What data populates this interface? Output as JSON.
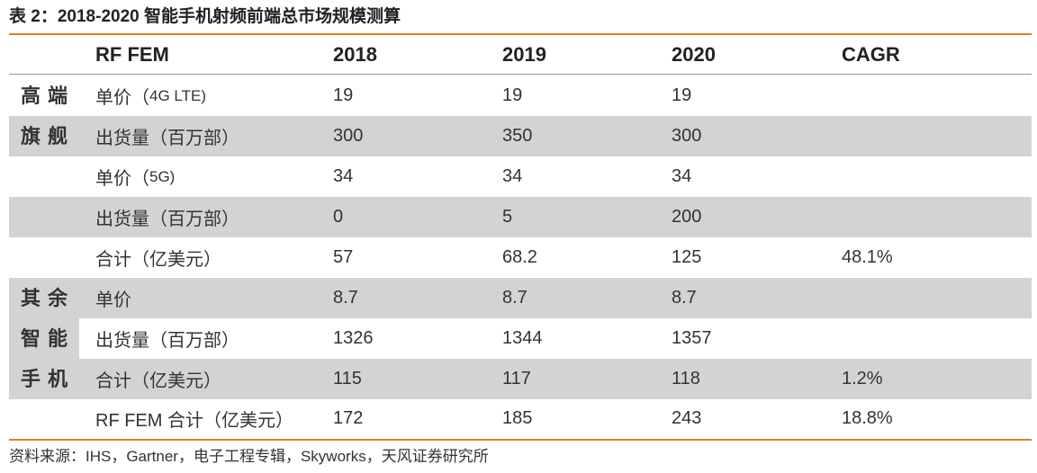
{
  "title": "表 2：2018-2020 智能手机射频前端总市场规模测算",
  "header": {
    "label": "RF FEM",
    "y2018": "2018",
    "y2019": "2019",
    "y2020": "2020",
    "cagr": "CAGR"
  },
  "groups": {
    "flagship": [
      "高端",
      "旗舰"
    ],
    "others": [
      "其余",
      "智能",
      "手机"
    ]
  },
  "rows": [
    {
      "label": "单价（",
      "label_sub": "4G LTE)",
      "y2018": "19",
      "y2019": "19",
      "y2020": "19",
      "cagr": ""
    },
    {
      "label": "出货量（百万部）",
      "label_sub": "",
      "y2018": "300",
      "y2019": "350",
      "y2020": "300",
      "cagr": ""
    },
    {
      "label": "单价（",
      "label_sub": "5G)",
      "y2018": "34",
      "y2019": "34",
      "y2020": "34",
      "cagr": ""
    },
    {
      "label": "出货量（百万部）",
      "label_sub": "",
      "y2018": "0",
      "y2019": "5",
      "y2020": "200",
      "cagr": ""
    },
    {
      "label": "合计（亿美元）",
      "label_sub": "",
      "y2018": "57",
      "y2019": "68.2",
      "y2020": "125",
      "cagr": "48.1%"
    },
    {
      "label": "单价",
      "label_sub": "",
      "y2018": "8.7",
      "y2019": "8.7",
      "y2020": "8.7",
      "cagr": ""
    },
    {
      "label": "出货量（百万部）",
      "label_sub": "",
      "y2018": "1326",
      "y2019": "1344",
      "y2020": "1357",
      "cagr": ""
    },
    {
      "label": "合计（亿美元）",
      "label_sub": "",
      "y2018": "115",
      "y2019": "117",
      "y2020": "118",
      "cagr": "1.2%"
    },
    {
      "label": "RF FEM 合计（亿美元）",
      "label_sub": "",
      "y2018": "172",
      "y2019": "185",
      "y2020": "243",
      "cagr": "18.8%"
    }
  ],
  "source": "资料来源：IHS，Gartner，电子工程专辑，Skyworks，天风证券研究所",
  "colors": {
    "accent_rule": "#e67e22",
    "row_shade": "#d3d3d3"
  }
}
